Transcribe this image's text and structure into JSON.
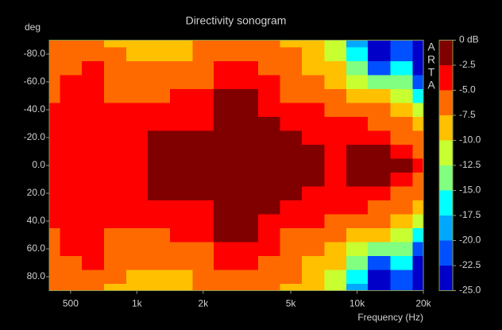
{
  "chart_data": {
    "type": "heatmap",
    "title": "Directivity sonogram",
    "y_label": "deg",
    "x_label": "Frequency (Hz)",
    "watermark": [
      "A",
      "R",
      "T",
      "A"
    ],
    "x_scale": "log",
    "x": [
      400,
      500,
      630,
      800,
      1000,
      1250,
      1600,
      2000,
      2500,
      3150,
      4000,
      5000,
      6300,
      8000,
      10000,
      12500,
      16000,
      20000
    ],
    "y": [
      -90,
      -80,
      -70,
      -60,
      -50,
      -40,
      -30,
      -20,
      -10,
      0,
      10,
      20,
      30,
      40,
      50,
      60,
      70,
      80,
      90
    ],
    "xlim": [
      400,
      20000
    ],
    "ylim": [
      -90,
      90
    ],
    "xticks": [
      500,
      {
        "value": 1000,
        "label": "1k"
      },
      {
        "value": 2000,
        "label": "2k"
      },
      {
        "value": 5000,
        "label": "5k"
      },
      {
        "value": 10000,
        "label": "10k"
      },
      {
        "value": 20000,
        "label": "20k"
      }
    ],
    "yticks": [
      {
        "value": -80,
        "label": "-80.0"
      },
      {
        "value": -60,
        "label": "-60.0"
      },
      {
        "value": -40,
        "label": "-40.0"
      },
      {
        "value": -20,
        "label": "-20.0"
      },
      {
        "value": 0,
        "label": "0.0"
      },
      {
        "value": 20,
        "label": "20.0"
      },
      {
        "value": 40,
        "label": "40.0"
      },
      {
        "value": 60,
        "label": "60.0"
      },
      {
        "value": 80,
        "label": "80.0"
      }
    ],
    "z": [
      [
        -7,
        -7,
        -6,
        -7.5,
        -8.5,
        -8.5,
        -8,
        -7,
        -6.5,
        -6.5,
        -7,
        -7.5,
        -9,
        -12,
        -19,
        -24,
        -22,
        -25
      ],
      [
        -7,
        -6,
        -5.5,
        -7,
        -8,
        -8,
        -7.5,
        -6,
        -6,
        -6,
        -6.5,
        -7,
        -8.5,
        -11,
        -17,
        -23,
        -20,
        -24
      ],
      [
        -7,
        -5.5,
        -4,
        -6.5,
        -7,
        -6.5,
        -6,
        -5.5,
        -4.5,
        -4.5,
        -5.5,
        -6,
        -7.5,
        -9.5,
        -14,
        -20,
        -16,
        -23
      ],
      [
        -6.5,
        -4.5,
        -3.5,
        -6,
        -6,
        -5.5,
        -5.5,
        -5,
        -3,
        -3,
        -4.5,
        -5.5,
        -6.5,
        -8,
        -11,
        -14,
        -13,
        -20
      ],
      [
        -5.5,
        -4,
        -3.5,
        -5,
        -5.5,
        -5,
        -4.5,
        -4,
        -1.5,
        -1.5,
        -3.5,
        -5,
        -5.5,
        -6.5,
        -8,
        -9,
        -11,
        -15
      ],
      [
        -4.5,
        -4,
        -4,
        -4.5,
        -4.5,
        -4,
        -4,
        -3.5,
        -1,
        -1,
        -3,
        -4,
        -4.5,
        -5.5,
        -6,
        -6.5,
        -9,
        -12
      ],
      [
        -4,
        -4,
        -4,
        -4,
        -4,
        -3,
        -3,
        -3,
        -1,
        -0.5,
        -2,
        -3.5,
        -4,
        -4.5,
        -4.5,
        -5,
        -7,
        -9
      ],
      [
        -4,
        -4,
        -4,
        -4,
        -3.5,
        -1.5,
        -1,
        -1.5,
        -1,
        -0.5,
        -1.5,
        -2,
        -3,
        -4,
        -3,
        -3.5,
        -5,
        -7
      ],
      [
        -4,
        -4,
        -4,
        -3.5,
        -3,
        -1,
        -1,
        -1,
        -1,
        -0.5,
        -1,
        -1,
        -1.5,
        -3,
        -1.5,
        -2,
        -3,
        -5
      ],
      [
        -4,
        -4,
        -4,
        -3.5,
        -3,
        -1,
        -1,
        -1,
        -1,
        -0.5,
        -1,
        -1,
        -1.5,
        -3,
        -1.5,
        -1.5,
        -2,
        -4
      ],
      [
        -4,
        -4,
        -4,
        -3.5,
        -3,
        -1,
        -1,
        -1,
        -1,
        -0.5,
        -1,
        -1,
        -1.5,
        -3,
        -1.5,
        -2,
        -3,
        -5
      ],
      [
        -4,
        -4,
        -4,
        -4,
        -3.5,
        -1.5,
        -1,
        -1.5,
        -1,
        -0.5,
        -1.5,
        -2,
        -3,
        -4,
        -3,
        -3.5,
        -5,
        -7
      ],
      [
        -4,
        -4,
        -4,
        -4,
        -4,
        -3,
        -3,
        -3,
        -1,
        -0.5,
        -2,
        -3.5,
        -4,
        -4.5,
        -4.5,
        -5,
        -7,
        -9
      ],
      [
        -4.5,
        -4,
        -4,
        -4.5,
        -4.5,
        -4,
        -4,
        -3.5,
        -1,
        -1,
        -3,
        -4,
        -4.5,
        -5.5,
        -6,
        -6.5,
        -9,
        -12
      ],
      [
        -5.5,
        -4,
        -3.5,
        -5,
        -5.5,
        -5,
        -4.5,
        -4,
        -1.5,
        -1.5,
        -3.5,
        -5,
        -5.5,
        -6.5,
        -8,
        -9,
        -11,
        -15
      ],
      [
        -6.5,
        -4.5,
        -3.5,
        -6,
        -6,
        -5.5,
        -5.5,
        -5,
        -3,
        -3,
        -4.5,
        -5.5,
        -6.5,
        -8,
        -11,
        -14,
        -13,
        -20
      ],
      [
        -7,
        -5.5,
        -4,
        -6.5,
        -7,
        -6.5,
        -6,
        -5.5,
        -4.5,
        -4.5,
        -5.5,
        -6,
        -7.5,
        -9.5,
        -14,
        -20,
        -16,
        -23
      ],
      [
        -7,
        -6,
        -5.5,
        -7,
        -8,
        -8,
        -7.5,
        -6,
        -6,
        -6,
        -6.5,
        -7,
        -8.5,
        -11,
        -17,
        -23,
        -20,
        -24
      ],
      [
        -7,
        -7,
        -6,
        -7.5,
        -8.5,
        -8.5,
        -8,
        -7,
        -6.5,
        -6.5,
        -7,
        -7.5,
        -9,
        -12,
        -19,
        -24,
        -22,
        -25
      ]
    ],
    "colorbar": {
      "lim": [
        0,
        -25
      ],
      "ticks": [
        {
          "value": 0,
          "label": "0 dB"
        },
        {
          "value": -2.5,
          "label": "-2.5"
        },
        {
          "value": -5,
          "label": "-5.0"
        },
        {
          "value": -7.5,
          "label": "-7.5"
        },
        {
          "value": -10,
          "label": "-10.0"
        },
        {
          "value": -12.5,
          "label": "-12.5"
        },
        {
          "value": -15,
          "label": "-15.0"
        },
        {
          "value": -17.5,
          "label": "-17.5"
        },
        {
          "value": -20,
          "label": "-20.0"
        },
        {
          "value": -22.5,
          "label": "-22.5"
        },
        {
          "value": -25,
          "label": "-25.0"
        }
      ],
      "colors": [
        "#800000",
        "#ff0000",
        "#ff6a00",
        "#ffc000",
        "#c8ff30",
        "#80ff80",
        "#00ffff",
        "#00a8ff",
        "#0050ff",
        "#0000c8"
      ]
    }
  }
}
